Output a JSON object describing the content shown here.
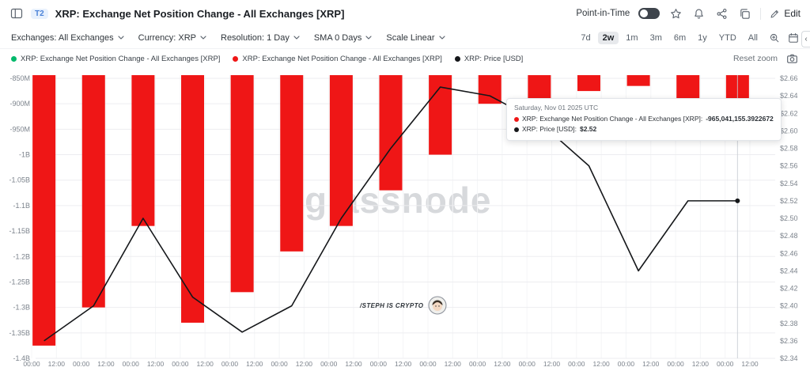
{
  "header": {
    "badge": "T2",
    "title": "XRP: Exchange Net Position Change - All Exchanges [XRP]",
    "point_in_time_label": "Point-in-Time",
    "edit_label": "Edit"
  },
  "toolbar": {
    "filters": [
      {
        "name": "exchanges",
        "label": "Exchanges: All Exchanges"
      },
      {
        "name": "currency",
        "label": "Currency: XRP"
      },
      {
        "name": "resolution",
        "label": "Resolution: 1 Day"
      },
      {
        "name": "sma",
        "label": "SMA 0 Days"
      },
      {
        "name": "scale",
        "label": "Scale Linear"
      }
    ],
    "ranges": [
      "7d",
      "2w",
      "1m",
      "3m",
      "6m",
      "1y",
      "YTD",
      "All"
    ],
    "active_range": "2w"
  },
  "legend": {
    "items": [
      {
        "color": "#00b96b",
        "label": "XRP: Exchange Net Position Change - All Exchanges [XRP]"
      },
      {
        "color": "#ef1616",
        "label": "XRP: Exchange Net Position Change - All Exchanges [XRP]"
      },
      {
        "color": "#15171a",
        "label": "XRP: Price [USD]"
      }
    ],
    "reset_zoom_label": "Reset zoom"
  },
  "tooltip": {
    "date": "Saturday, Nov 01 2025 UTC",
    "rows": [
      {
        "color": "#ef1616",
        "label": "XRP: Exchange Net Position Change - All Exchanges [XRP]:",
        "value": "-965,041,155.3922672"
      },
      {
        "color": "#15171a",
        "label": "XRP: Price [USD]:",
        "value": "$2.52"
      }
    ]
  },
  "watermark": "glassnode",
  "annotation": "/STEPH IS CRYPTO",
  "chart_data": {
    "type": "bar+line",
    "series": [
      {
        "name": "XRP: Exchange Net Position Change - All Exchanges [XRP]",
        "type": "bar",
        "color": "#ef1616",
        "unit": "XRP (millions)",
        "values_millions": [
          -1375,
          -1300,
          -1140,
          -1330,
          -1270,
          -1190,
          -1140,
          -1070,
          -1000,
          -900,
          -890,
          -875,
          -865,
          -890,
          -965
        ]
      },
      {
        "name": "XRP: Price [USD]",
        "type": "line",
        "color": "#15171a",
        "values_usd": [
          2.36,
          2.4,
          2.5,
          2.41,
          2.37,
          2.4,
          2.5,
          2.58,
          2.65,
          2.64,
          2.61,
          2.56,
          2.44,
          2.52,
          2.52
        ]
      }
    ],
    "x_tick_labels": [
      "00:00",
      "12:00",
      "00:00",
      "12:00",
      "00:00",
      "12:00",
      "00:00",
      "12:00",
      "00:00",
      "12:00",
      "00:00",
      "12:00",
      "00:00",
      "12:00",
      "00:00",
      "12:00",
      "00:00",
      "12:00",
      "00:00",
      "12:00",
      "00:00",
      "12:00",
      "00:00",
      "12:00",
      "00:00",
      "12:00",
      "00:00",
      "12:00",
      "00:00",
      "12:00"
    ],
    "left_axis": {
      "ticks": [
        "-850M",
        "-900M",
        "-950M",
        "-1B",
        "-1.05B",
        "-1.1B",
        "-1.15B",
        "-1.2B",
        "-1.25B",
        "-1.3B",
        "-1.35B",
        "-1.4B"
      ],
      "max_millions": -850,
      "min_millions": -1400
    },
    "right_axis": {
      "ticks": [
        "$2.66",
        "$2.64",
        "$2.62",
        "$2.60",
        "$2.58",
        "$2.56",
        "$2.54",
        "$2.52",
        "$2.50",
        "$2.48",
        "$2.46",
        "$2.44",
        "$2.42",
        "$2.40",
        "$2.38",
        "$2.36",
        "$2.34"
      ],
      "max": 2.66,
      "min": 2.34
    },
    "highlight_index": 14,
    "grid": true,
    "legend_position": "top-left"
  }
}
